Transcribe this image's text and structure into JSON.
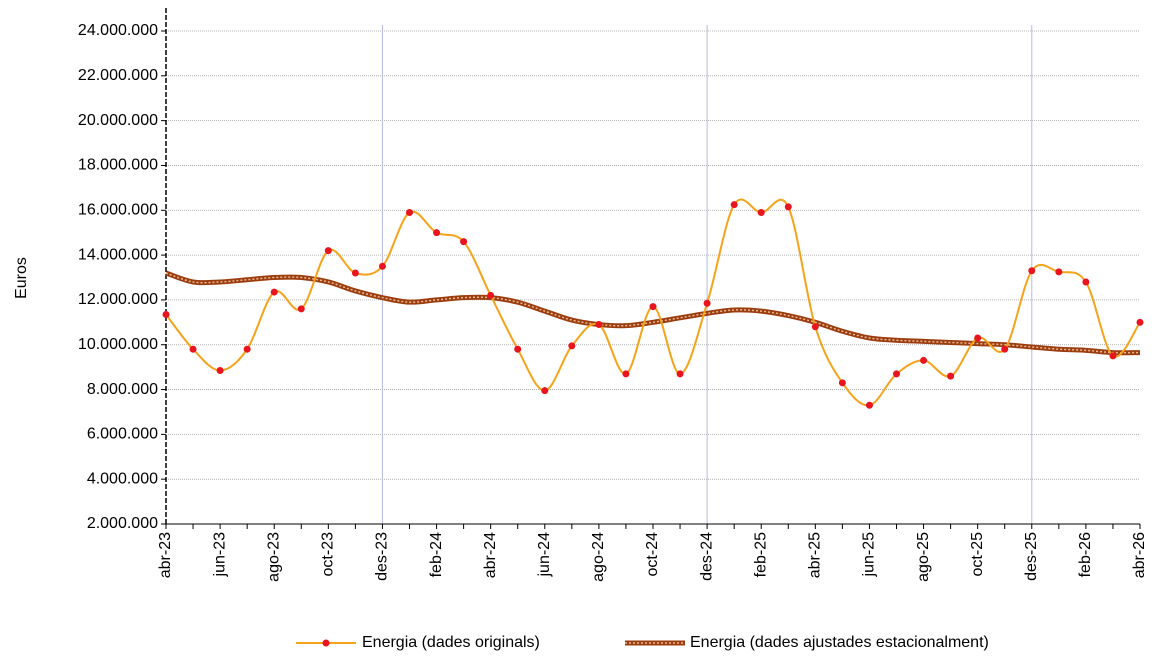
{
  "chart_data": {
    "type": "line",
    "y_label": "Euros",
    "categories": [
      "abr-23",
      null,
      "jun-23",
      null,
      "ago-23",
      null,
      "oct-23",
      null,
      "des-23",
      null,
      "feb-24",
      null,
      "abr-24",
      null,
      "jun-24",
      null,
      "ago-24",
      null,
      "oct-24",
      null,
      "des-24",
      null,
      "feb-25",
      null,
      "abr-25",
      null,
      "jun-25",
      null,
      "ago-25",
      null,
      "oct-25",
      null,
      "des-25",
      null,
      "feb-26",
      null,
      "abr-26"
    ],
    "series": [
      {
        "name": "Energia (dades originals)",
        "color": "#f5a31a",
        "marker_color": "#e8141e",
        "values": [
          11350000,
          9800000,
          8850000,
          9800000,
          12350000,
          11600000,
          14200000,
          13200000,
          13500000,
          15900000,
          15000000,
          14600000,
          12200000,
          9800000,
          7950000,
          9950000,
          10900000,
          8700000,
          11700000,
          8700000,
          11850000,
          16250000,
          15900000,
          16150000,
          10800000,
          8300000,
          7300000,
          8700000,
          9300000,
          8600000,
          10300000,
          9800000,
          13300000,
          13250000,
          12800000,
          9500000,
          11000000
        ]
      },
      {
        "name": "Energia (dades ajustades estacionalment)",
        "color": "#9c3d10",
        "values": [
          13200000,
          12800000,
          12800000,
          12900000,
          13000000,
          13000000,
          12800000,
          12400000,
          12100000,
          11900000,
          12000000,
          12100000,
          12100000,
          11900000,
          11500000,
          11100000,
          10900000,
          10850000,
          11000000,
          11200000,
          11400000,
          11550000,
          11500000,
          11300000,
          11000000,
          10600000,
          10300000,
          10200000,
          10150000,
          10100000,
          10050000,
          10000000,
          9900000,
          9800000,
          9750000,
          9650000,
          9650000
        ]
      }
    ],
    "ylim": [
      2000000,
      24000000
    ],
    "yticks": [
      {
        "value": 2000000,
        "label": "2.000.000"
      },
      {
        "value": 4000000,
        "label": "4.000.000"
      },
      {
        "value": 6000000,
        "label": "6.000.000"
      },
      {
        "value": 8000000,
        "label": "8.000.000"
      },
      {
        "value": 10000000,
        "label": "10.000.000"
      },
      {
        "value": 12000000,
        "label": "12.000.000"
      },
      {
        "value": 14000000,
        "label": "14.000.000"
      },
      {
        "value": 16000000,
        "label": "16.000.000"
      },
      {
        "value": 18000000,
        "label": "18.000.000"
      },
      {
        "value": 20000000,
        "label": "20.000.000"
      },
      {
        "value": 22000000,
        "label": "22.000.000"
      },
      {
        "value": 24000000,
        "label": "24.000.000"
      }
    ],
    "grid": true
  }
}
